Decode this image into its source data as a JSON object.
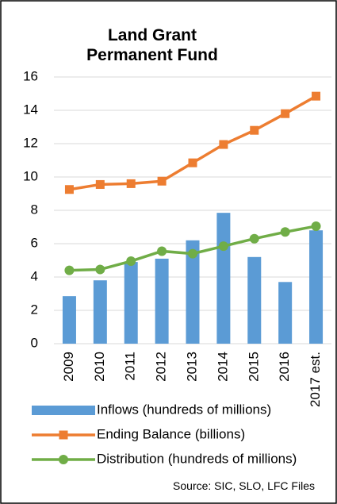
{
  "chart_data": {
    "type": "combo",
    "title": "Land Grant Permanent Fund",
    "note": "Source: SIC, SLO, LFC Files",
    "categories": [
      "2009",
      "2010",
      "2011",
      "2012",
      "2013",
      "2014",
      "2015",
      "2016",
      "2017 est."
    ],
    "series": [
      {
        "name": "Inflows (hundreds of millions)",
        "type": "bar",
        "color": "#5b9bd5",
        "values": [
          2.85,
          3.8,
          4.9,
          5.1,
          6.2,
          7.85,
          5.2,
          3.7,
          6.8
        ]
      },
      {
        "name": "Ending Balance (billions)",
        "type": "line",
        "marker": "square",
        "color": "#ed7d31",
        "values": [
          9.25,
          9.55,
          9.6,
          9.75,
          10.85,
          11.95,
          12.8,
          13.8,
          14.85
        ]
      },
      {
        "name": "Distribution (hundreds of millions)",
        "type": "line",
        "marker": "circle",
        "color": "#70ad47",
        "values": [
          4.4,
          4.45,
          4.95,
          5.55,
          5.4,
          5.85,
          6.3,
          6.7,
          7.05
        ]
      }
    ],
    "ylim": [
      0,
      16
    ],
    "yticks": [
      0,
      2,
      4,
      6,
      8,
      10,
      12,
      14,
      16
    ],
    "grid": true,
    "legend": "bottom"
  }
}
